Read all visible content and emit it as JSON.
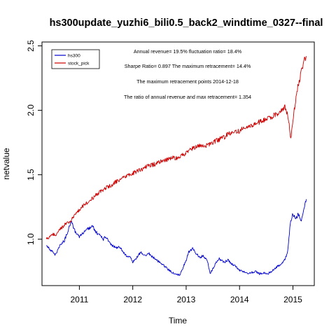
{
  "chart_data": {
    "type": "line",
    "title": "hs300update_yuzhi6_bili0.5_back2_windtime_0327--final",
    "xlabel": "Time",
    "ylabel": "netvalue",
    "xlim": [
      2010.3,
      2015.4
    ],
    "ylim": [
      0.64,
      2.53
    ],
    "x_ticks": [
      2011,
      2012,
      2013,
      2014,
      2015
    ],
    "x_tick_labels": [
      "2011",
      "2012",
      "2013",
      "2014",
      "2015"
    ],
    "y_ticks": [
      1.0,
      1.5,
      2.0,
      2.5
    ],
    "y_tick_labels": [
      "1.0",
      "1.5",
      "2.0",
      "2.5"
    ],
    "legend": {
      "placement": "top-left"
    },
    "annotations": [
      "Annual revenue=  19.5% fluctuation ratio= 18.4%",
      "Sharpe Ratio= 0.897 The maximum retracement= 14.4%",
      "The maximum retracement points 2014-12-18",
      "The ratio of annual revenue and max retracement= 1.354"
    ],
    "series": [
      {
        "name": "hs300",
        "color": "#0000cc",
        "x": [
          2010.38,
          2010.45,
          2010.5,
          2010.55,
          2010.6,
          2010.65,
          2010.72,
          2010.8,
          2010.85,
          2010.88,
          2010.92,
          2011.0,
          2011.08,
          2011.15,
          2011.25,
          2011.3,
          2011.38,
          2011.45,
          2011.5,
          2011.55,
          2011.62,
          2011.7,
          2011.75,
          2011.82,
          2011.88,
          2011.95,
          2012.0,
          2012.08,
          2012.15,
          2012.22,
          2012.3,
          2012.38,
          2012.45,
          2012.52,
          2012.6,
          2012.68,
          2012.75,
          2012.82,
          2012.88,
          2012.92,
          2013.0,
          2013.05,
          2013.12,
          2013.18,
          2013.25,
          2013.32,
          2013.4,
          2013.45,
          2013.5,
          2013.56,
          2013.62,
          2013.68,
          2013.72,
          2013.78,
          2013.85,
          2013.92,
          2014.0,
          2014.08,
          2014.15,
          2014.22,
          2014.3,
          2014.38,
          2014.45,
          2014.52,
          2014.6,
          2014.68,
          2014.75,
          2014.8,
          2014.85,
          2014.9,
          2014.95,
          2015.0,
          2015.05,
          2015.1,
          2015.15,
          2015.2,
          2015.25
        ],
        "values": [
          0.96,
          0.92,
          0.9,
          0.88,
          0.92,
          0.96,
          0.99,
          1.08,
          1.15,
          1.1,
          1.06,
          1.02,
          1.05,
          1.08,
          1.1,
          1.06,
          1.03,
          1.0,
          1.02,
          0.98,
          0.95,
          0.93,
          0.94,
          0.9,
          0.87,
          0.86,
          0.82,
          0.86,
          0.9,
          0.87,
          0.89,
          0.86,
          0.84,
          0.81,
          0.79,
          0.76,
          0.74,
          0.73,
          0.72,
          0.76,
          0.84,
          0.9,
          0.93,
          0.89,
          0.86,
          0.87,
          0.83,
          0.73,
          0.77,
          0.82,
          0.85,
          0.83,
          0.82,
          0.84,
          0.81,
          0.79,
          0.76,
          0.75,
          0.73,
          0.74,
          0.75,
          0.73,
          0.74,
          0.73,
          0.75,
          0.78,
          0.8,
          0.82,
          0.84,
          0.9,
          1.12,
          1.2,
          1.15,
          1.2,
          1.14,
          1.22,
          1.31
        ]
      },
      {
        "name": "stock_pick",
        "color": "#cc0000",
        "x": [
          2010.38,
          2010.45,
          2010.5,
          2010.55,
          2010.6,
          2010.65,
          2010.72,
          2010.8,
          2010.85,
          2010.9,
          2010.95,
          2011.0,
          2011.1,
          2011.2,
          2011.3,
          2011.4,
          2011.5,
          2011.6,
          2011.7,
          2011.8,
          2011.9,
          2012.0,
          2012.1,
          2012.2,
          2012.3,
          2012.4,
          2012.5,
          2012.6,
          2012.7,
          2012.8,
          2012.9,
          2013.0,
          2013.1,
          2013.2,
          2013.3,
          2013.4,
          2013.5,
          2013.6,
          2013.7,
          2013.8,
          2013.9,
          2014.0,
          2014.1,
          2014.2,
          2014.3,
          2014.4,
          2014.5,
          2014.6,
          2014.7,
          2014.8,
          2014.85,
          2014.9,
          2014.93,
          2014.96,
          2015.0,
          2015.05,
          2015.1,
          2015.15,
          2015.2,
          2015.25
        ],
        "values": [
          1.0,
          1.02,
          1.04,
          1.03,
          1.06,
          1.08,
          1.11,
          1.13,
          1.15,
          1.18,
          1.2,
          1.23,
          1.27,
          1.3,
          1.34,
          1.37,
          1.4,
          1.42,
          1.45,
          1.47,
          1.49,
          1.51,
          1.53,
          1.55,
          1.57,
          1.58,
          1.6,
          1.61,
          1.63,
          1.63,
          1.64,
          1.67,
          1.7,
          1.72,
          1.73,
          1.73,
          1.75,
          1.77,
          1.79,
          1.82,
          1.84,
          1.84,
          1.87,
          1.88,
          1.9,
          1.91,
          1.93,
          1.95,
          1.97,
          2.0,
          2.03,
          1.96,
          1.88,
          1.78,
          1.92,
          2.08,
          2.2,
          2.28,
          2.38,
          2.42
        ]
      }
    ]
  }
}
